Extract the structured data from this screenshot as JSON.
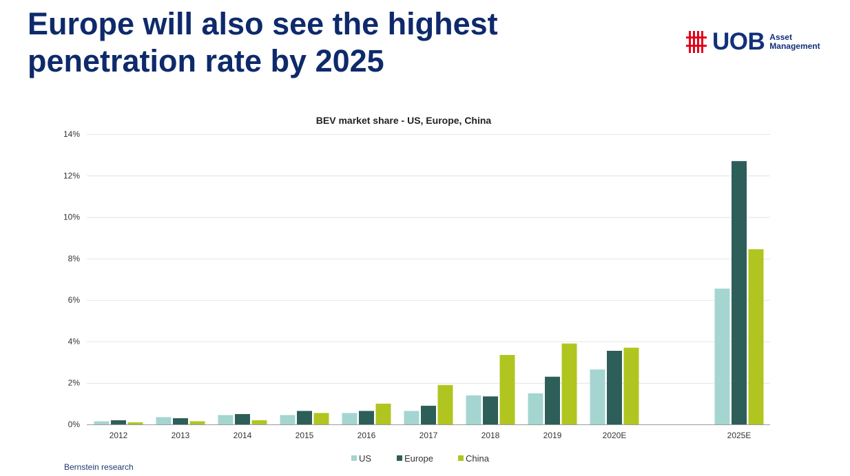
{
  "slide": {
    "title_line1": "Europe will also see the highest",
    "title_line2": "penetration rate by 2025",
    "source": "Bernstein research"
  },
  "logo": {
    "icon": "uob-logo-mark-icon",
    "wordmark": "UOB",
    "sub_line1": "Asset",
    "sub_line2": "Management",
    "brand_red": "#e3001b",
    "brand_blue": "#12307a"
  },
  "chart_data": {
    "type": "bar",
    "title": "BEV market share - US, Europe, China",
    "xlabel": "",
    "ylabel": "",
    "categories": [
      "2012",
      "2013",
      "2014",
      "2015",
      "2016",
      "2017",
      "2018",
      "2019",
      "2020E",
      "2025E"
    ],
    "y_ticks": [
      "0%",
      "2%",
      "4%",
      "6%",
      "8%",
      "10%",
      "12%",
      "14%"
    ],
    "ylim": [
      0,
      14
    ],
    "grid": true,
    "legend_position": "bottom-center",
    "series": [
      {
        "name": "US",
        "color": "#a5d5d0",
        "values": [
          0.15,
          0.35,
          0.45,
          0.45,
          0.55,
          0.65,
          1.4,
          1.5,
          2.65,
          6.55
        ]
      },
      {
        "name": "Europe",
        "color": "#2e5e59",
        "values": [
          0.2,
          0.3,
          0.5,
          0.65,
          0.65,
          0.9,
          1.35,
          2.3,
          3.55,
          12.7
        ]
      },
      {
        "name": "China",
        "color": "#b0c520",
        "values": [
          0.1,
          0.15,
          0.2,
          0.55,
          1.0,
          1.9,
          3.35,
          3.9,
          3.7,
          8.45
        ]
      }
    ]
  }
}
